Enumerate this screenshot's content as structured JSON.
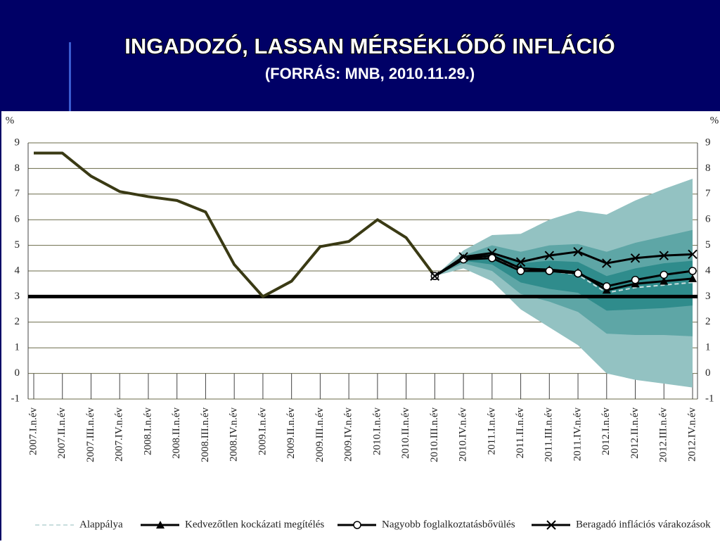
{
  "chart_data": {
    "type": "line",
    "title": "INGADOZÓ, LASSAN MÉRSÉKLŐDŐ INFLÁCIÓ",
    "subtitle": "(FORRÁS: MNB, 2010.11.29.)",
    "y_label": "%",
    "y2_label": "%",
    "categories": [
      "2007.I.n.év",
      "2007.II.n.év",
      "2007.III.n.év",
      "2007.IV.n.év",
      "2008.I.n.év",
      "2008.II.n.év",
      "2008.III.n.év",
      "2008.IV.n.év",
      "2009.I.n.év",
      "2009.II.n.év",
      "2009.III.n.év",
      "2009.IV.n.év",
      "2010.I.n.év",
      "2010.II.n.év",
      "2010.III.n.év",
      "2010.IV.n.év",
      "2011.I.n.év",
      "2011.II.n.év",
      "2011.III.n.év",
      "2011.IV.n.év",
      "2012.I.n.év",
      "2012.II.n.év",
      "2012.III.n.év",
      "2012.IV.n.év"
    ],
    "ylim": [
      -1,
      9
    ],
    "yticks": [
      -1,
      0,
      1,
      2,
      3,
      4,
      5,
      6,
      7,
      8,
      9
    ],
    "y2lim": [
      -1,
      9
    ],
    "y2ticks": [
      -1,
      0,
      1,
      2,
      3,
      4,
      5,
      6,
      7,
      8,
      9
    ],
    "grid": true,
    "reference_line": 3,
    "bands": [
      {
        "color": "#93c2c2",
        "upper": [
          null,
          null,
          null,
          null,
          null,
          null,
          null,
          null,
          null,
          null,
          null,
          null,
          null,
          null,
          3.8,
          4.8,
          5.4,
          5.45,
          6.0,
          6.35,
          6.2,
          6.75,
          7.2,
          7.6
        ],
        "lower": [
          null,
          null,
          null,
          null,
          null,
          null,
          null,
          null,
          null,
          null,
          null,
          null,
          null,
          null,
          3.8,
          4.1,
          3.6,
          2.5,
          1.8,
          1.1,
          0.0,
          -0.25,
          -0.4,
          -0.55
        ]
      },
      {
        "color": "#5ea6a6",
        "upper": [
          null,
          null,
          null,
          null,
          null,
          null,
          null,
          null,
          null,
          null,
          null,
          null,
          null,
          null,
          3.8,
          4.6,
          5.0,
          4.75,
          5.0,
          5.05,
          4.75,
          5.1,
          5.35,
          5.6
        ],
        "lower": [
          null,
          null,
          null,
          null,
          null,
          null,
          null,
          null,
          null,
          null,
          null,
          null,
          null,
          null,
          3.8,
          4.3,
          4.0,
          3.1,
          2.8,
          2.4,
          1.55,
          1.5,
          1.5,
          1.45
        ]
      },
      {
        "color": "#2f8c8c",
        "upper": [
          null,
          null,
          null,
          null,
          null,
          null,
          null,
          null,
          null,
          null,
          null,
          null,
          null,
          null,
          3.8,
          4.5,
          4.75,
          4.3,
          4.4,
          4.35,
          3.8,
          4.1,
          4.3,
          4.4
        ],
        "lower": [
          null,
          null,
          null,
          null,
          null,
          null,
          null,
          null,
          null,
          null,
          null,
          null,
          null,
          null,
          3.8,
          4.4,
          4.25,
          3.55,
          3.3,
          3.15,
          2.45,
          2.5,
          2.55,
          2.65
        ]
      }
    ],
    "series": [
      {
        "color": "#3a3a14",
        "width": 4,
        "values": [
          8.6,
          8.6,
          7.7,
          7.1,
          6.9,
          6.75,
          6.3,
          4.25,
          3.0,
          3.6,
          4.95,
          5.15,
          6.0,
          5.3,
          3.8,
          null,
          null,
          null,
          null,
          null,
          null,
          null,
          null,
          null
        ]
      },
      {
        "name": "Alappálya",
        "color": "#c8dede",
        "dash": true,
        "width": 2,
        "marker": null,
        "values": [
          null,
          null,
          null,
          null,
          null,
          null,
          null,
          null,
          null,
          null,
          null,
          null,
          null,
          null,
          3.8,
          4.45,
          4.55,
          4.05,
          4.0,
          3.85,
          3.15,
          3.35,
          3.45,
          3.55
        ]
      },
      {
        "name": "Kedvezőtlen kockázati megítélés",
        "color": "#000000",
        "width": 3,
        "marker": "triangle",
        "values": [
          null,
          null,
          null,
          null,
          null,
          null,
          null,
          null,
          null,
          null,
          null,
          null,
          null,
          null,
          3.8,
          4.5,
          4.6,
          4.1,
          4.05,
          3.95,
          3.25,
          3.5,
          3.6,
          3.7
        ]
      },
      {
        "name": "Nagyobb foglalkoztatásbővülés",
        "color": "#000000",
        "width": 3,
        "marker": "circle",
        "values": [
          null,
          null,
          null,
          null,
          null,
          null,
          null,
          null,
          null,
          null,
          null,
          null,
          null,
          null,
          3.8,
          4.45,
          4.5,
          4.0,
          4.0,
          3.9,
          3.4,
          3.65,
          3.85,
          4.0
        ]
      },
      {
        "name": "Beragadó inflációs várakozások",
        "color": "#000000",
        "width": 3,
        "marker": "x",
        "values": [
          null,
          null,
          null,
          null,
          null,
          null,
          null,
          null,
          null,
          null,
          null,
          null,
          null,
          null,
          3.8,
          4.55,
          4.7,
          4.35,
          4.6,
          4.75,
          4.3,
          4.5,
          4.6,
          4.65
        ]
      }
    ]
  }
}
